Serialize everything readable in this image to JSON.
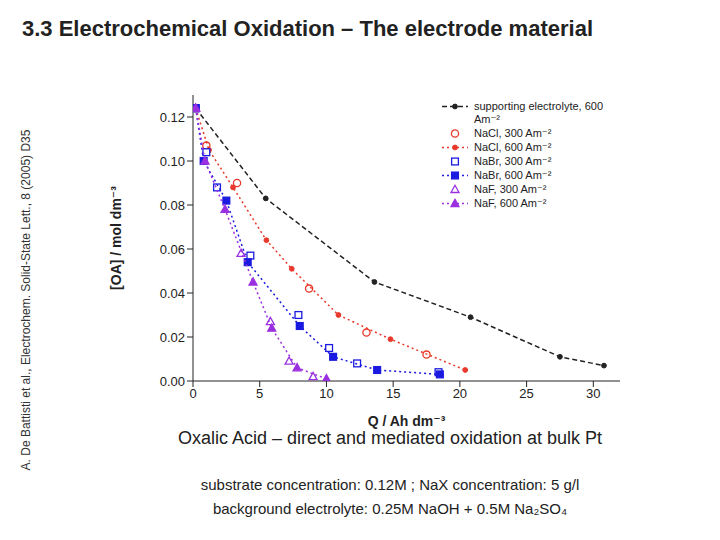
{
  "chart_data": {
    "type": "scatter",
    "title": "3.3 Electrochemical Oxidation – The electrode material",
    "source": "A. De Battisti et al., Electrochem. Solid-State Lett., 8 (2005) D35",
    "x_label": "Q / Ah dm⁻³",
    "y_label": "[OA] / mol dm⁻³",
    "xlim": [
      0,
      32
    ],
    "xticks": [
      0,
      5,
      10,
      15,
      20,
      25,
      30
    ],
    "ylim": [
      0,
      0.13
    ],
    "yticks": [
      {
        "value": 0,
        "label": "0.00"
      },
      {
        "value": 0.02,
        "label": "0.02"
      },
      {
        "value": 0.04,
        "label": "0.04"
      },
      {
        "value": 0.06,
        "label": "0.06"
      },
      {
        "value": 0.08,
        "label": "0.08"
      },
      {
        "value": 0.1,
        "label": "0.10"
      },
      {
        "value": 0.12,
        "label": "0.12"
      }
    ],
    "grid": false,
    "legend": "top-right",
    "series": [
      {
        "name": "supporting electrolyte, 600 Am⁻²",
        "color": "#222222",
        "marker": "dot",
        "line_style": "dashed",
        "x": [
          0.2,
          5.45,
          13.6,
          20.8,
          27.5,
          30.8
        ],
        "values": [
          0.124,
          0.083,
          0.045,
          0.029,
          0.011,
          0.007
        ]
      },
      {
        "name": "NaCl, 300 Am⁻²",
        "color": "#e8392c",
        "marker": "circle_open",
        "line_style": "none",
        "x": [
          0.2,
          1.0,
          3.3,
          8.7,
          13.0,
          17.5
        ],
        "values": [
          0.124,
          0.107,
          0.09,
          0.042,
          0.022,
          0.012
        ]
      },
      {
        "name": "NaCl, 600 Am⁻²",
        "color": "#e8392c",
        "marker": "dot",
        "line_style": "dotted",
        "x": [
          0.2,
          1.2,
          3.0,
          5.5,
          7.4,
          10.9,
          14.8,
          20.4
        ],
        "values": [
          0.124,
          0.105,
          0.088,
          0.064,
          0.051,
          0.03,
          0.019,
          0.005
        ]
      },
      {
        "name": "NaBr, 300 Am⁻²",
        "color": "#1a1ae0",
        "marker": "square_open",
        "line_style": "none",
        "x": [
          0.2,
          1.0,
          1.8,
          4.3,
          7.9,
          10.2,
          12.3,
          18.4
        ],
        "values": [
          0.124,
          0.104,
          0.088,
          0.057,
          0.03,
          0.015,
          0.008,
          0.004
        ]
      },
      {
        "name": "NaBr, 600 Am⁻²",
        "color": "#1a1ae0",
        "marker": "square",
        "line_style": "dotted",
        "x": [
          0.2,
          0.8,
          2.5,
          4.1,
          8.0,
          10.5,
          13.8,
          18.5
        ],
        "values": [
          0.124,
          0.1,
          0.082,
          0.054,
          0.025,
          0.011,
          0.005,
          0.003
        ]
      },
      {
        "name": "NaF, 300 Am⁻²",
        "color": "#9b30e0",
        "marker": "triangle_open",
        "line_style": "none",
        "x": [
          0.2,
          3.6,
          5.8,
          7.2,
          9.0
        ],
        "values": [
          0.124,
          0.058,
          0.027,
          0.009,
          0.002
        ]
      },
      {
        "name": "NaF, 600 Am⁻²",
        "color": "#9b30e0",
        "marker": "triangle",
        "line_style": "dotted",
        "x": [
          0.2,
          0.9,
          2.4,
          4.5,
          5.9,
          7.8,
          10.0
        ],
        "values": [
          0.124,
          0.1,
          0.078,
          0.045,
          0.024,
          0.006,
          0.001
        ]
      }
    ],
    "annotations": [
      "Oxalic Acid – direct and mediated oxidation at bulk Pt",
      "substrate concentration: 0.12M ; NaX concentration: 5 g/l",
      "background electrolyte: 0.25M NaOH + 0.5M Na₂SO₄"
    ]
  }
}
